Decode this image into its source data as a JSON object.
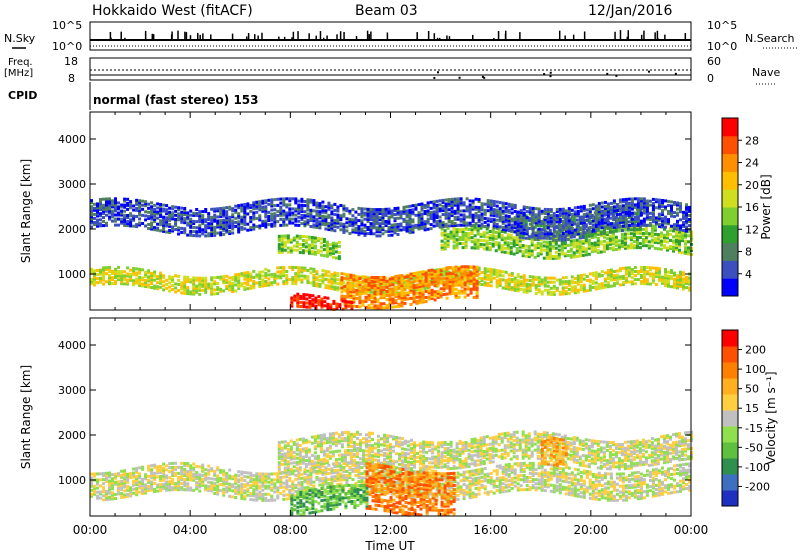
{
  "header": {
    "radar": "Hokkaido West (fitACF)",
    "beam": "Beam 03",
    "date": "12/Jan/2016"
  },
  "chart_data": {
    "type": "heatmap",
    "title": "Hokkaido West (fitACF)",
    "x_tick_labels": [
      "00:00",
      "04:00",
      "08:00",
      "12:00",
      "16:00",
      "20:00",
      "00:00"
    ],
    "xlabel": "Time UT",
    "ylabel": "Slant Range [km]",
    "y_tick_labels": [
      "1000",
      "2000",
      "3000",
      "4000"
    ],
    "ylim": [
      200,
      4600
    ],
    "noise_panel": {
      "left_label": "N.Sky",
      "right_label": "N.Search",
      "left_ticks": [
        "10^5",
        "10^0"
      ],
      "right_ticks": [
        "10^5",
        "10^0"
      ]
    },
    "freq_panel": {
      "left_label_1": "Freq.",
      "left_label_2": "[MHz]",
      "right_label": "Nave",
      "left_ticks": [
        "18",
        "8"
      ],
      "right_ticks": [
        "60",
        "0"
      ]
    },
    "cpid_label": "CPID",
    "cpid_text": "normal (fast stereo) 153",
    "power_scale": {
      "label": "Power [dB]",
      "ticks": [
        "28",
        "24",
        "20",
        "16",
        "12",
        "8",
        "4"
      ],
      "colors": [
        "#0000ff",
        "#3c4fbf",
        "#4f7f5f",
        "#2f9f2f",
        "#7fcf2f",
        "#cfdf1f",
        "#ffbf00",
        "#ff8f00",
        "#ff4f00",
        "#ff0000"
      ]
    },
    "velocity_scale": {
      "label": "Velocity [m s⁻¹]",
      "ticks": [
        "200",
        "100",
        "50",
        "15",
        "-15",
        "-50",
        "-100",
        "-200"
      ],
      "colors": [
        "#1f2fbf",
        "#3f6fbf",
        "#2f8f4f",
        "#5fbf3f",
        "#8fdf4f",
        "#c0c0c0",
        "#ffcf3f",
        "#ffaf1f",
        "#ff7f00",
        "#ff4f00",
        "#ff0000"
      ]
    },
    "power_echo_bands": [
      {
        "t_start": 0,
        "t_end": 24,
        "range_km": [
          700,
          1100
        ],
        "level": 5
      },
      {
        "t_start": 7.5,
        "t_end": 10,
        "range_km": [
          1400,
          1800
        ],
        "level": 4
      },
      {
        "t_start": 10,
        "t_end": 15.5,
        "range_km": [
          400,
          1100
        ],
        "level": 7
      },
      {
        "t_start": 8,
        "t_end": 10.5,
        "range_km": [
          200,
          500
        ],
        "level": 9
      },
      {
        "t_start": 14,
        "t_end": 24,
        "range_km": [
          1500,
          2000
        ],
        "level": 4
      },
      {
        "t_start": 17,
        "t_end": 22,
        "range_km": [
          1900,
          2400
        ],
        "level": 2
      },
      {
        "t_start": 0,
        "t_end": 24,
        "range_km": [
          2000,
          2600
        ],
        "level": 1
      }
    ],
    "velocity_echo_bands": [
      {
        "t_start": 0,
        "t_end": 24,
        "range_km": [
          700,
          1300
        ],
        "level": 5
      },
      {
        "t_start": 7.5,
        "t_end": 14,
        "range_km": [
          1300,
          2000
        ],
        "level": 5
      },
      {
        "t_start": 11,
        "t_end": 14.5,
        "range_km": [
          300,
          1300
        ],
        "level": 8
      },
      {
        "t_start": 8,
        "t_end": 11,
        "range_km": [
          300,
          800
        ],
        "level": 3
      },
      {
        "t_start": 14,
        "t_end": 24,
        "range_km": [
          1400,
          2000
        ],
        "level": 5
      },
      {
        "t_start": 18,
        "t_end": 19,
        "range_km": [
          1300,
          1900
        ],
        "level": 7
      }
    ]
  }
}
